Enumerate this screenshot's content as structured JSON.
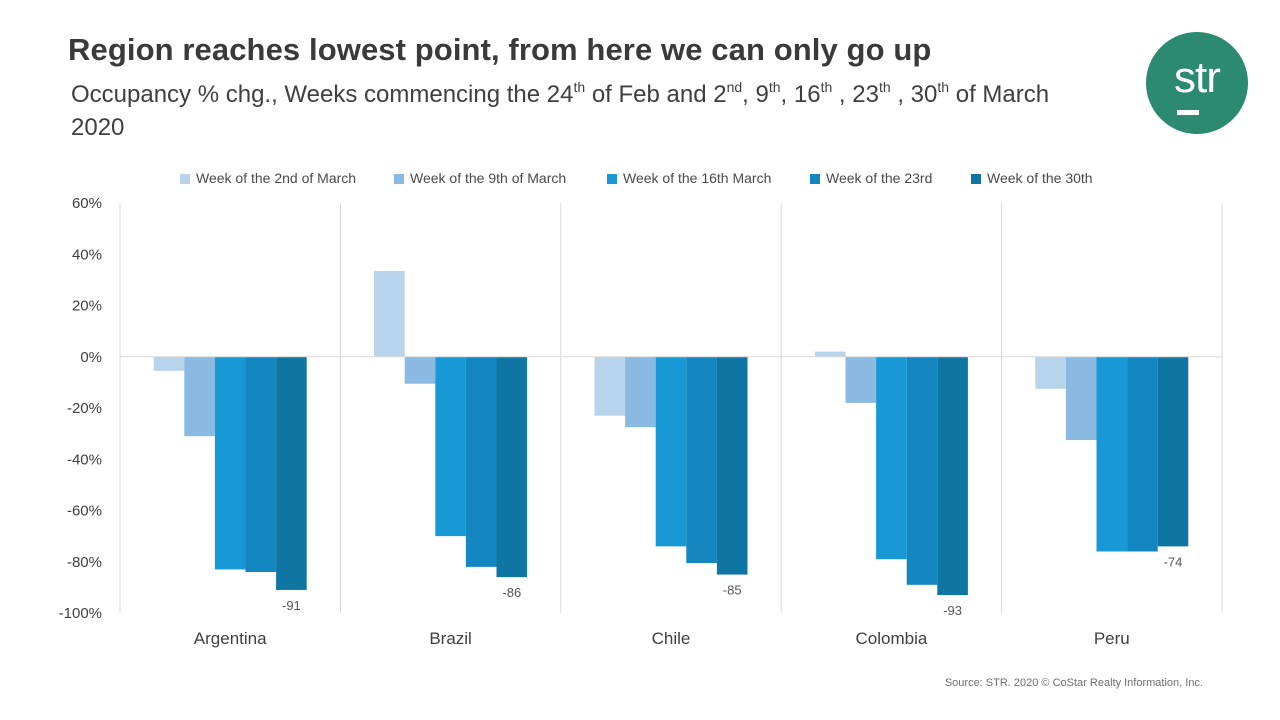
{
  "header": {
    "title": "Region reaches lowest point, from here we can only go up",
    "subtitle": {
      "p1": "Occupancy % chg., Weeks commencing the 24",
      "s1": "th",
      "p2": " of Feb and 2",
      "s2": "nd",
      "p3": ", 9",
      "s3": "th",
      "p4": ", 16",
      "s4": "th",
      "p5": " , 23",
      "s5": "th",
      "p6": " , 30",
      "s6": "th",
      "p7": " of March 2020"
    }
  },
  "logo": {
    "text": "str"
  },
  "source": "Source: STR. 2020 © CoStar Realty Information, Inc.",
  "chart_data": {
    "type": "bar",
    "title": "Region reaches lowest point, from here we can only go up",
    "subtitle": "Occupancy % chg., Weeks commencing the 24th of Feb and 2nd, 9th, 16th , 23th , 30th of March 2020",
    "categories": [
      "Argentina",
      "Brazil",
      "Chile",
      "Colombia",
      "Peru"
    ],
    "series": [
      {
        "name": "Week of the 2nd of March",
        "color": "#b8d3ec",
        "values": [
          -5.5,
          33.5,
          -23,
          2,
          -12.5
        ]
      },
      {
        "name": "Week of the 9th of March",
        "color": "#8ab9e1",
        "values": [
          -31,
          -10.5,
          -27.5,
          -18,
          -32.5
        ]
      },
      {
        "name": "Week of the 16th March",
        "color": "#1899d6",
        "values": [
          -83,
          -70,
          -74,
          -79,
          -76
        ]
      },
      {
        "name": "Week of the 23rd",
        "color": "#1486c0",
        "values": [
          -84,
          -82,
          -80.5,
          -89,
          -76
        ]
      },
      {
        "name": "Week of the 30th",
        "color": "#0f75a3",
        "values": [
          -91,
          -86,
          -85,
          -93,
          -74
        ]
      }
    ],
    "data_labels": [
      "-91",
      "-86",
      "-85",
      "-93",
      "-74"
    ],
    "ylim": [
      -100,
      60
    ],
    "yticks": [
      60,
      40,
      20,
      0,
      -20,
      -40,
      -60,
      -80,
      -100
    ],
    "ytick_labels": [
      "60%",
      "40%",
      "20%",
      "0%",
      "-20%",
      "-40%",
      "-60%",
      "-80%",
      "-100%"
    ],
    "xlabel": "",
    "ylabel": "",
    "legend_position": "top",
    "grid": "vertical category separators"
  }
}
